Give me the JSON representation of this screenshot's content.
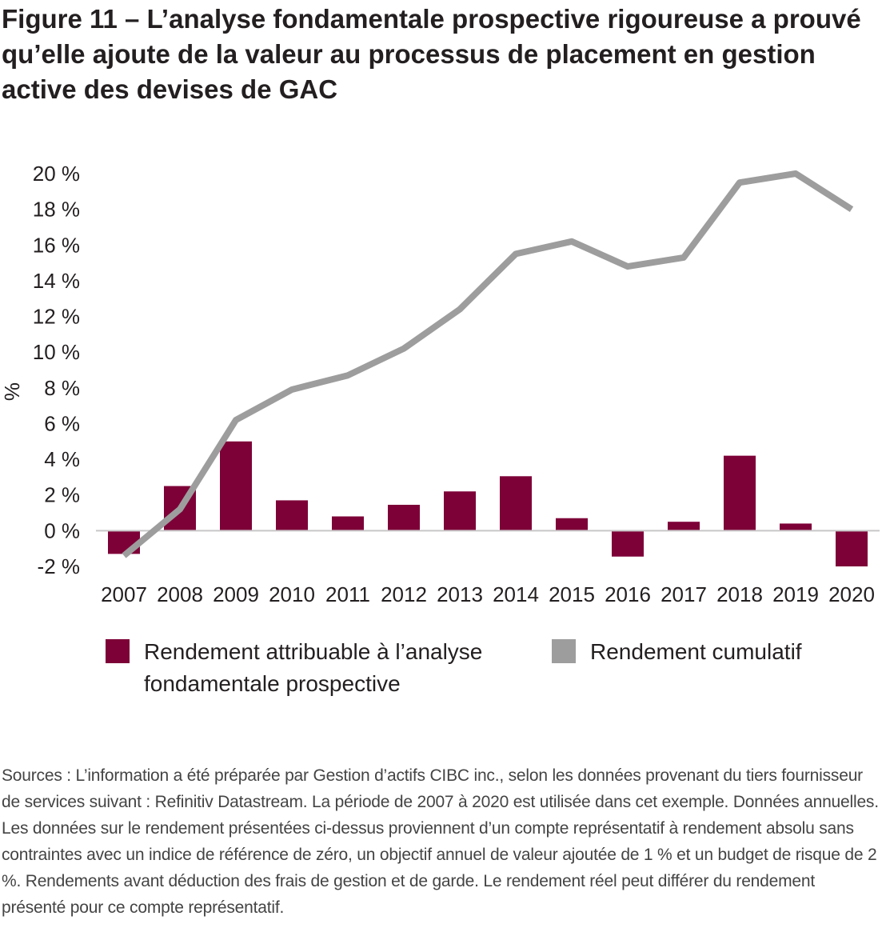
{
  "title": "Figure 11 – L’analyse fondamentale prospective rigoureuse a prouvé qu’elle ajoute de la valeur au processus de placement en gestion active des devises de GAC",
  "notes": "Sources : L’information a été préparée par Gestion d’actifs CIBC inc., selon les données provenant du tiers fournisseur de services suivant : Refinitiv Datastream. La période de 2007 à 2020 est utilisée dans cet exemple. Données annuelles. Les données sur le rendement présentées ci-dessus proviennent d’un compte représentatif à rendement absolu sans contraintes avec un indice de référence de zéro, un objectif annuel de valeur ajoutée de 1 % et un budget de risque de 2 %. Rendements avant déduction des frais de gestion et de garde. Le rendement réel peut différer du rendement présenté pour ce compte représentatif.",
  "colors": {
    "bar": "#7d0037",
    "line": "#9d9d9d",
    "zero_line": "#c8c8c8"
  },
  "chart_data": {
    "type": "bar",
    "title": "",
    "xlabel": "",
    "ylabel": "%",
    "ylim": [
      -2,
      20
    ],
    "y_ticks": [
      20,
      18,
      16,
      14,
      12,
      10,
      8,
      6,
      4,
      2,
      0,
      -2
    ],
    "y_tick_labels": [
      "20 %",
      "18 %",
      "16 %",
      "14 %",
      "12 %",
      "10 %",
      "8 %",
      "6 %",
      "4 %",
      "2 %",
      "0 %",
      "-2 %"
    ],
    "grid": false,
    "legend_position": "bottom",
    "categories": [
      "2007",
      "2008",
      "2009",
      "2010",
      "2011",
      "2012",
      "2013",
      "2014",
      "2015",
      "2016",
      "2017",
      "2018",
      "2019",
      "2020"
    ],
    "series": [
      {
        "name": "Rendement attribuable à l’analyse fondamentale prospective",
        "type": "bar",
        "values": [
          -1.3,
          2.5,
          5.0,
          1.7,
          0.8,
          1.45,
          2.2,
          3.05,
          0.7,
          -1.45,
          0.5,
          4.2,
          0.4,
          -2.0
        ]
      },
      {
        "name": "Rendement cumulatif",
        "type": "line",
        "values": [
          -1.4,
          1.2,
          6.2,
          7.9,
          8.7,
          10.2,
          12.4,
          15.5,
          16.2,
          14.8,
          15.3,
          19.5,
          20.0,
          18.0
        ]
      }
    ]
  }
}
